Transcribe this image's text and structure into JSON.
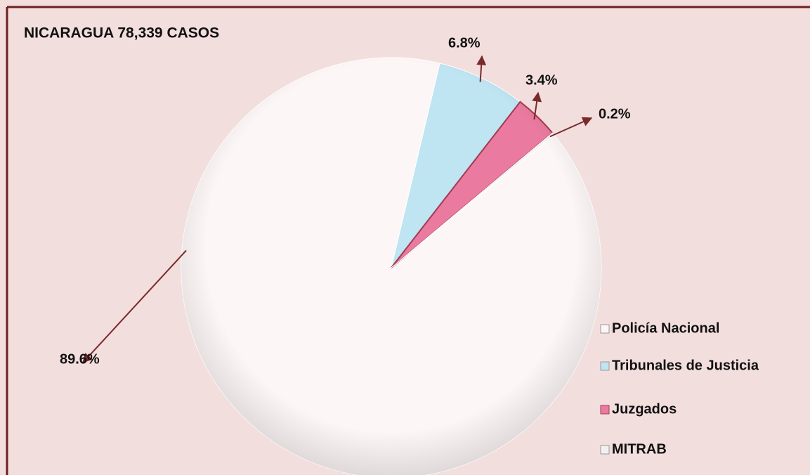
{
  "chart_data": {
    "type": "pie",
    "title": "NICARAGUA  78,339 CASOS",
    "categories": [
      "Policía Nacional",
      "Tribunales de Justicia",
      "Juzgados",
      "MITRAB"
    ],
    "values": [
      89.6,
      6.8,
      3.4,
      0.2
    ],
    "value_labels": [
      "89.6%",
      "6.8%",
      "3.4%",
      "0.2%"
    ],
    "colors": [
      "#fdf6f7",
      "#bfe4f2",
      "#ea7aa0",
      "#f4f0f0"
    ],
    "legend": "right"
  }
}
